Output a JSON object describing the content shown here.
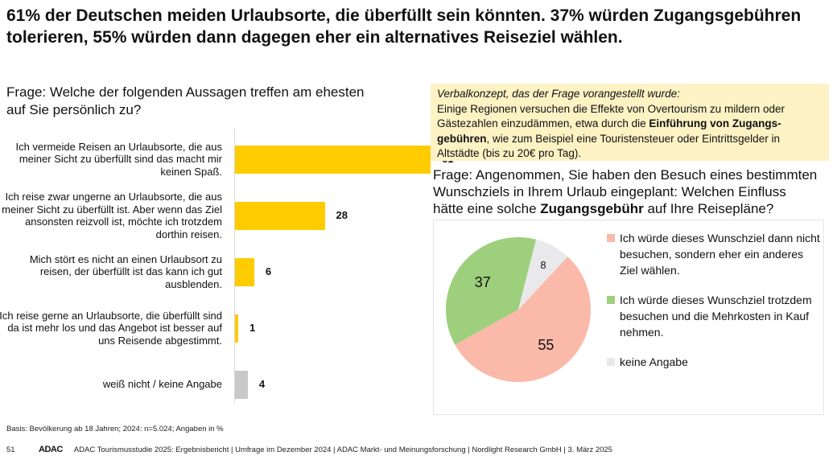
{
  "title": "61% der Deutschen meiden Urlaubsorte, die überfüllt sein könnten. 37% würden Zugangsgebühren tolerieren, 55% würden dann dagegen eher ein alternatives Reiseziel wählen.",
  "left_question": "Frage: Welche der folgenden Aussagen treffen am ehesten auf Sie persönlich zu?",
  "concept": {
    "lead": "Verbalkonzept, das der Frage vorangestellt wurde:",
    "text_1": "Einige Regionen versuchen die Effekte von Overtourism zu mildern oder Gästezahlen einzudämmen, etwa durch die ",
    "bold": "Einführung von Zugangs-gebühren",
    "text_2": ", wie zum Beispiel eine Touristensteuer oder Eintrittsgelder in Altstädte (bis zu 20€ pro Tag)."
  },
  "right_question": {
    "text_1": "Frage: Angenommen, Sie haben den Besuch eines bestimmten Wunschziels in Ihrem Urlaub eingeplant: Welchen Einfluss hätte eine solche ",
    "bold": "Zugangsgebühr",
    "text_2": " auf Ihre Reisepläne?"
  },
  "chart_data": [
    {
      "type": "bar",
      "orientation": "horizontal",
      "categories": [
        "Ich vermeide Reisen an Urlaubsorte, die aus meiner Sicht zu überfüllt sind das macht mir keinen Spaß.",
        "Ich reise zwar ungerne an Urlaubsorte, die aus meiner Sicht zu überfüllt ist. Aber wenn das Ziel ansonsten reizvoll ist, möchte ich trotzdem dorthin reisen.",
        "Mich stört es nicht an einen Urlaubsort zu reisen, der überfüllt ist das kann ich gut ausblenden.",
        "Ich reise gerne an Urlaubsorte, die überfüllt sind da ist mehr los und das Angebot ist besser auf uns Reisende abgestimmt.",
        "weiß nicht / keine Angabe"
      ],
      "values": [
        61,
        28,
        6,
        1,
        4
      ],
      "colors": [
        "#ffcc00",
        "#ffcc00",
        "#ffcc00",
        "#ffcc00",
        "#c9c9c9"
      ],
      "unit": "%",
      "xlim": [
        0,
        100
      ],
      "grid": false
    },
    {
      "type": "pie",
      "slices": [
        {
          "label": "Ich würde dieses Wunschziel dann nicht besuchen, sondern eher ein anderes Ziel wählen.",
          "value": 55,
          "color": "#fbb9a9"
        },
        {
          "label": "Ich würde dieses Wunschziel trotzdem besuchen und die Mehrkosten in Kauf nehmen.",
          "value": 37,
          "color": "#9dcf7c"
        },
        {
          "label": "keine Angabe",
          "value": 8,
          "color": "#e9e9eb"
        }
      ],
      "legend_position": "right",
      "unit": "%"
    }
  ],
  "basis": "Basis: Bevölkerung ab 18 Jahren; 2024: n=5.024; Angaben in %",
  "footer": {
    "page": "51",
    "logo": "ADAC",
    "text": "ADAC Tourismusstudie 2025: Ergebnisbericht | Umfrage im Dezember 2024 | ADAC Markt- und Meinungsforschung | Nordlight Research GmbH | 3. März 2025"
  }
}
